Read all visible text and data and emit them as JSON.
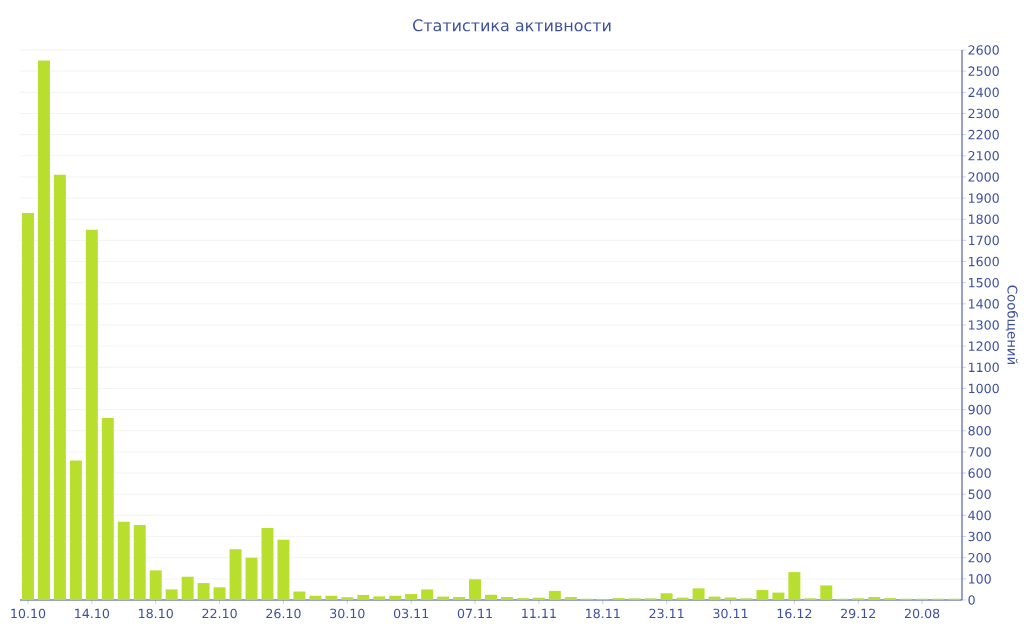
{
  "chart_data": {
    "type": "bar",
    "title": "Статистика активности",
    "y2label": "Сообщений",
    "categories": [
      "10.10",
      null,
      null,
      null,
      "14.10",
      null,
      null,
      null,
      "18.10",
      null,
      null,
      null,
      "22.10",
      null,
      null,
      null,
      "26.10",
      null,
      null,
      null,
      "30.10",
      null,
      null,
      null,
      "03.11",
      null,
      null,
      null,
      "07.11",
      null,
      null,
      null,
      "11.11",
      null,
      null,
      null,
      "18.11",
      null,
      null,
      null,
      "23.11",
      null,
      null,
      null,
      "30.11",
      null,
      null,
      null,
      "16.12",
      null,
      null,
      null,
      "29.12",
      null,
      null,
      null,
      "20.08",
      null,
      null
    ],
    "series": [
      {
        "color": "#b8df2e",
        "axis": "y2",
        "values": [
          1830,
          2550,
          2010,
          660,
          1750,
          860,
          370,
          355,
          140,
          50,
          110,
          80,
          60,
          240,
          200,
          340,
          285,
          40,
          20,
          20,
          13,
          24,
          17,
          20,
          28,
          50,
          16,
          14,
          98,
          25,
          14,
          9,
          11,
          43,
          14,
          6,
          5,
          9,
          8,
          8,
          32,
          11,
          55,
          16,
          12,
          8,
          47,
          35,
          132,
          8,
          69,
          6,
          8,
          14,
          9,
          6,
          6,
          6,
          6
        ]
      }
    ],
    "y2lim": [
      0,
      2600
    ],
    "y2ticks": [
      0,
      100,
      200,
      300,
      400,
      500,
      600,
      700,
      800,
      900,
      1000,
      1100,
      1200,
      1300,
      1400,
      1500,
      1600,
      1700,
      1800,
      1900,
      2000,
      2100,
      2200,
      2300,
      2400,
      2500,
      2600
    ],
    "grid": "y"
  }
}
